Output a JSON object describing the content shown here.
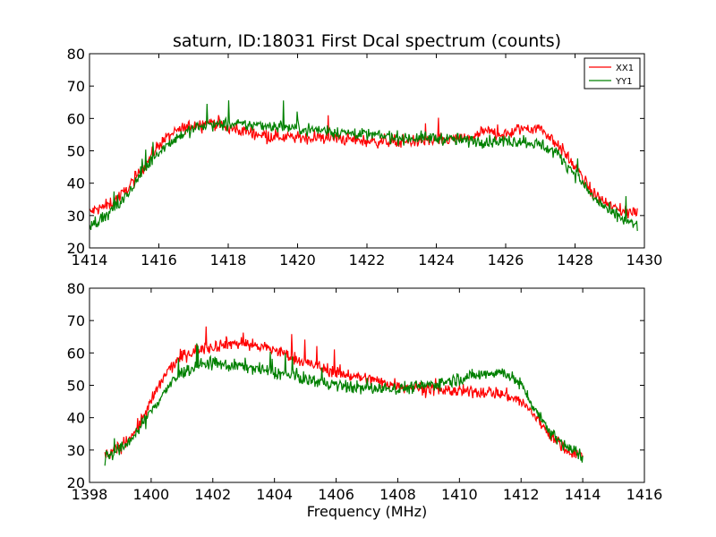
{
  "title": "saturn, ID:18031 First Dcal spectrum (counts)",
  "xlabel": "Frequency (MHz)",
  "colors": {
    "XX1": "#ff0000",
    "YY1": "#008000"
  },
  "legend_entries": [
    "XX1",
    "YY1"
  ],
  "chart_data": [
    {
      "type": "line",
      "title": "saturn, ID:18031 First Dcal spectrum (counts)",
      "xlabel": "",
      "ylabel": "",
      "xlim": [
        1414,
        1430
      ],
      "ylim": [
        20,
        80
      ],
      "xticks": [
        "1414",
        "1416",
        "1418",
        "1420",
        "1422",
        "1424",
        "1426",
        "1428",
        "1430"
      ],
      "yticks": [
        "20",
        "30",
        "40",
        "50",
        "60",
        "70",
        "80"
      ],
      "legend": "top-right",
      "grid": false,
      "series": [
        {
          "name": "XX1",
          "color": "#ff0000",
          "x": [
            1414.0,
            1414.5,
            1415.0,
            1415.5,
            1416.0,
            1416.5,
            1417.0,
            1417.5,
            1418.0,
            1419.0,
            1420.0,
            1421.0,
            1422.0,
            1423.0,
            1424.0,
            1425.0,
            1425.5,
            1426.0,
            1426.5,
            1427.0,
            1427.5,
            1428.0,
            1428.5,
            1429.0,
            1429.5,
            1429.8
          ],
          "y": [
            31,
            33,
            37,
            44,
            52,
            56,
            58,
            59,
            57,
            55,
            54,
            54,
            53,
            53,
            53,
            54,
            56,
            55,
            57,
            57,
            52,
            45,
            37,
            33,
            31,
            31
          ]
        },
        {
          "name": "YY1",
          "color": "#008000",
          "x": [
            1414.0,
            1414.5,
            1415.0,
            1415.5,
            1416.0,
            1416.5,
            1417.0,
            1417.5,
            1418.0,
            1419.0,
            1420.0,
            1421.0,
            1422.0,
            1423.0,
            1424.0,
            1425.0,
            1425.5,
            1426.0,
            1426.5,
            1427.0,
            1427.5,
            1428.0,
            1428.5,
            1429.0,
            1429.5,
            1429.8
          ],
          "y": [
            27,
            30,
            35,
            43,
            50,
            54,
            57,
            58,
            58,
            58,
            57,
            56,
            55,
            54,
            54,
            53,
            53,
            53,
            53,
            52,
            49,
            43,
            36,
            31,
            28,
            27
          ]
        }
      ]
    },
    {
      "type": "line",
      "title": "",
      "xlabel": "Frequency (MHz)",
      "ylabel": "",
      "xlim": [
        1398,
        1416
      ],
      "ylim": [
        20,
        80
      ],
      "xticks": [
        "1398",
        "1400",
        "1402",
        "1404",
        "1406",
        "1408",
        "1410",
        "1412",
        "1414",
        "1416"
      ],
      "yticks": [
        "20",
        "30",
        "40",
        "50",
        "60",
        "70",
        "80"
      ],
      "grid": false,
      "series": [
        {
          "name": "XX1",
          "color": "#ff0000",
          "x": [
            1398.5,
            1399.0,
            1399.5,
            1400.0,
            1400.5,
            1401.0,
            1401.5,
            1402.0,
            1402.5,
            1403.0,
            1403.5,
            1404.0,
            1405.0,
            1406.0,
            1407.0,
            1408.0,
            1409.0,
            1410.0,
            1411.0,
            1411.5,
            1412.0,
            1412.5,
            1413.0,
            1413.5,
            1414.0
          ],
          "y": [
            28,
            31,
            36,
            45,
            54,
            59,
            61,
            62,
            63,
            63,
            62,
            61,
            57,
            54,
            52,
            50,
            49,
            48,
            48,
            47,
            45,
            40,
            34,
            30,
            28
          ]
        },
        {
          "name": "YY1",
          "color": "#008000",
          "x": [
            1398.5,
            1399.0,
            1399.5,
            1400.0,
            1400.5,
            1401.0,
            1401.5,
            1402.0,
            1402.5,
            1403.0,
            1403.5,
            1404.0,
            1405.0,
            1406.0,
            1407.0,
            1408.0,
            1409.0,
            1410.0,
            1411.0,
            1411.5,
            1412.0,
            1412.5,
            1413.0,
            1413.5,
            1414.0
          ],
          "y": [
            28,
            30,
            35,
            42,
            49,
            54,
            56,
            57,
            56,
            56,
            55,
            54,
            52,
            50,
            49,
            49,
            50,
            52,
            54,
            54,
            50,
            42,
            35,
            31,
            28
          ]
        }
      ]
    }
  ]
}
